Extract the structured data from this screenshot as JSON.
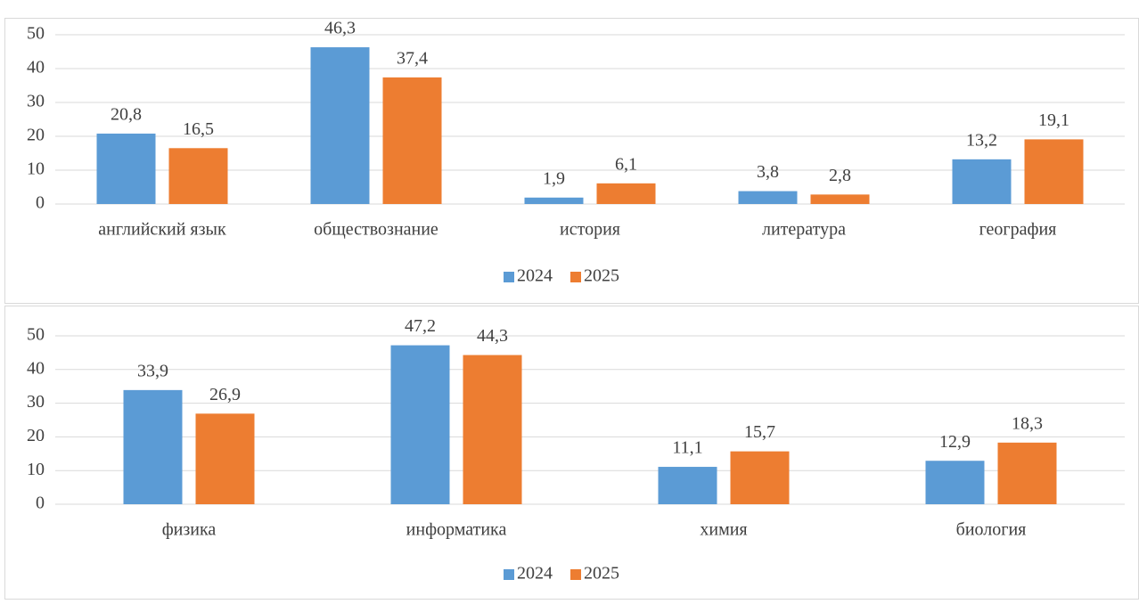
{
  "chart_data": [
    {
      "type": "bar",
      "categories": [
        "английский язык",
        "обществознание",
        "история",
        "литература",
        "география"
      ],
      "series": [
        {
          "name": "2024",
          "color": "#5b9bd5",
          "values": [
            20.8,
            46.3,
            1.9,
            3.8,
            13.2
          ],
          "value_labels": [
            "20,8",
            "46,3",
            "1,9",
            "3,8",
            "13,2"
          ]
        },
        {
          "name": "2025",
          "color": "#ed7d31",
          "values": [
            16.5,
            37.4,
            6.1,
            2.8,
            19.1
          ],
          "value_labels": [
            "16,5",
            "37,4",
            "6,1",
            "2,8",
            "19,1"
          ]
        }
      ],
      "ylim": [
        0,
        50
      ],
      "yticks": [
        0,
        10,
        20,
        30,
        40,
        50
      ],
      "grid": true,
      "legend": "bottom"
    },
    {
      "type": "bar",
      "categories": [
        "физика",
        "информатика",
        "химия",
        "биология"
      ],
      "series": [
        {
          "name": "2024",
          "color": "#5b9bd5",
          "values": [
            33.9,
            47.2,
            11.1,
            12.9
          ],
          "value_labels": [
            "33,9",
            "47,2",
            "11,1",
            "12,9"
          ]
        },
        {
          "name": "2025",
          "color": "#ed7d31",
          "values": [
            26.9,
            44.3,
            15.7,
            18.3
          ],
          "value_labels": [
            "26,9",
            "44,3",
            "15,7",
            "18,3"
          ]
        }
      ],
      "ylim": [
        0,
        50
      ],
      "yticks": [
        0,
        10,
        20,
        30,
        40,
        50
      ],
      "grid": true,
      "legend": "bottom"
    }
  ]
}
